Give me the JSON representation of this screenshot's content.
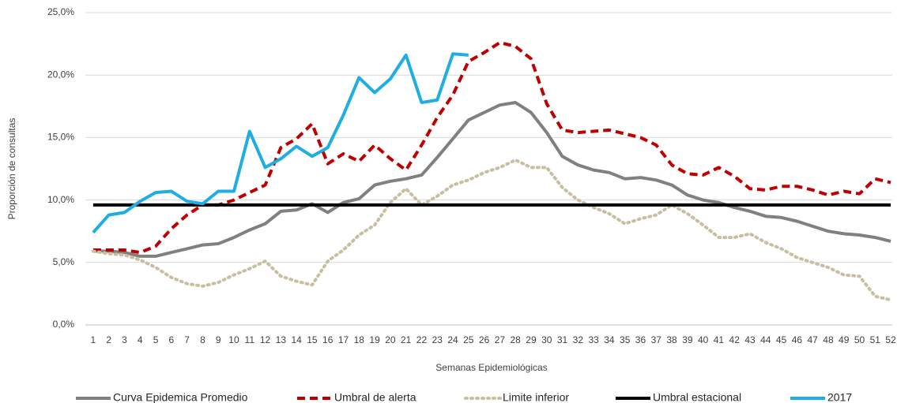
{
  "chart_data": {
    "type": "line",
    "y_label": "Proporción de consultas",
    "x_label": "Semanas Epidemiológicas",
    "categories": [
      1,
      2,
      3,
      4,
      5,
      6,
      7,
      8,
      9,
      10,
      11,
      12,
      13,
      14,
      15,
      16,
      17,
      18,
      19,
      20,
      21,
      22,
      23,
      24,
      25,
      26,
      27,
      28,
      29,
      30,
      31,
      32,
      33,
      34,
      35,
      36,
      37,
      38,
      39,
      40,
      41,
      42,
      43,
      44,
      45,
      46,
      47,
      48,
      49,
      50,
      51,
      52
    ],
    "ylim": [
      0,
      25
    ],
    "yticks": [
      {
        "value": 0,
        "label": "0,0%"
      },
      {
        "value": 5,
        "label": "5,0%"
      },
      {
        "value": 10,
        "label": "10,0%"
      },
      {
        "value": 15,
        "label": "15,0%"
      },
      {
        "value": 20,
        "label": "20,0%"
      },
      {
        "value": 25,
        "label": "25,0%"
      }
    ],
    "grid": true,
    "legend": "bottom",
    "series": [
      {
        "name": "Curva Epidemica Promedio",
        "color": "#808080",
        "dash": "solid",
        "values": [
          5.9,
          5.9,
          5.8,
          5.5,
          5.5,
          5.8,
          6.1,
          6.4,
          6.5,
          7.0,
          7.6,
          8.1,
          9.1,
          9.2,
          9.7,
          9.0,
          9.8,
          10.1,
          11.2,
          11.5,
          11.7,
          12.0,
          13.4,
          14.9,
          16.4,
          17.0,
          17.6,
          17.8,
          17.0,
          15.4,
          13.5,
          12.8,
          12.4,
          12.2,
          11.7,
          11.8,
          11.6,
          11.2,
          10.4,
          10.0,
          9.8,
          9.4,
          9.1,
          8.7,
          8.6,
          8.3,
          7.9,
          7.5,
          7.3,
          7.2,
          7.0,
          6.7
        ]
      },
      {
        "name": "Umbral de alerta",
        "color": "#c00000",
        "dash": "dashed",
        "values": [
          6.0,
          6.0,
          6.0,
          5.8,
          6.3,
          7.7,
          8.8,
          9.6,
          9.6,
          10.0,
          10.6,
          11.2,
          14.2,
          14.9,
          16.1,
          12.9,
          13.7,
          13.1,
          14.4,
          13.3,
          12.4,
          14.4,
          16.6,
          18.4,
          21.1,
          21.8,
          22.6,
          22.3,
          21.3,
          17.7,
          15.6,
          15.4,
          15.5,
          15.6,
          15.3,
          15.0,
          14.4,
          12.8,
          12.1,
          12.0,
          12.6,
          11.9,
          10.9,
          10.8,
          11.1,
          11.1,
          10.8,
          10.4,
          10.7,
          10.5,
          11.7,
          11.4
        ]
      },
      {
        "name": "Limite inferior",
        "color": "#c9bfa0",
        "dash": "dotted",
        "values": [
          5.9,
          5.7,
          5.6,
          5.2,
          4.6,
          3.8,
          3.3,
          3.1,
          3.4,
          4.0,
          4.5,
          5.1,
          3.9,
          3.5,
          3.2,
          5.1,
          6.0,
          7.2,
          8.0,
          9.8,
          10.9,
          9.6,
          10.3,
          11.2,
          11.6,
          12.2,
          12.6,
          13.2,
          12.6,
          12.6,
          11.0,
          10.0,
          9.4,
          8.9,
          8.1,
          8.5,
          8.8,
          9.6,
          8.9,
          8.0,
          7.0,
          7.0,
          7.3,
          6.6,
          6.1,
          5.4,
          5.0,
          4.6,
          4.0,
          3.9,
          2.3,
          2.0
        ]
      },
      {
        "name": "Umbral estacional",
        "color": "#000000",
        "dash": "solid",
        "values": [
          9.6,
          9.6,
          9.6,
          9.6,
          9.6,
          9.6,
          9.6,
          9.6,
          9.6,
          9.6,
          9.6,
          9.6,
          9.6,
          9.6,
          9.6,
          9.6,
          9.6,
          9.6,
          9.6,
          9.6,
          9.6,
          9.6,
          9.6,
          9.6,
          9.6,
          9.6,
          9.6,
          9.6,
          9.6,
          9.6,
          9.6,
          9.6,
          9.6,
          9.6,
          9.6,
          9.6,
          9.6,
          9.6,
          9.6,
          9.6,
          9.6,
          9.6,
          9.6,
          9.6,
          9.6,
          9.6,
          9.6,
          9.6,
          9.6,
          9.6,
          9.6,
          9.6
        ]
      },
      {
        "name": "2017",
        "color": "#1eaee4",
        "dash": "solid",
        "values": [
          7.4,
          8.8,
          9.0,
          9.9,
          10.6,
          10.7,
          9.9,
          9.7,
          10.7,
          10.7,
          15.5,
          12.6,
          13.3,
          14.3,
          13.5,
          14.2,
          16.8,
          19.8,
          18.6,
          19.7,
          21.6,
          17.8,
          18.0,
          21.7,
          21.6,
          null,
          null,
          null,
          null,
          null,
          null,
          null,
          null,
          null,
          null,
          null,
          null,
          null,
          null,
          null,
          null,
          null,
          null,
          null,
          null,
          null,
          null,
          null,
          null,
          null,
          null,
          null
        ]
      }
    ]
  }
}
